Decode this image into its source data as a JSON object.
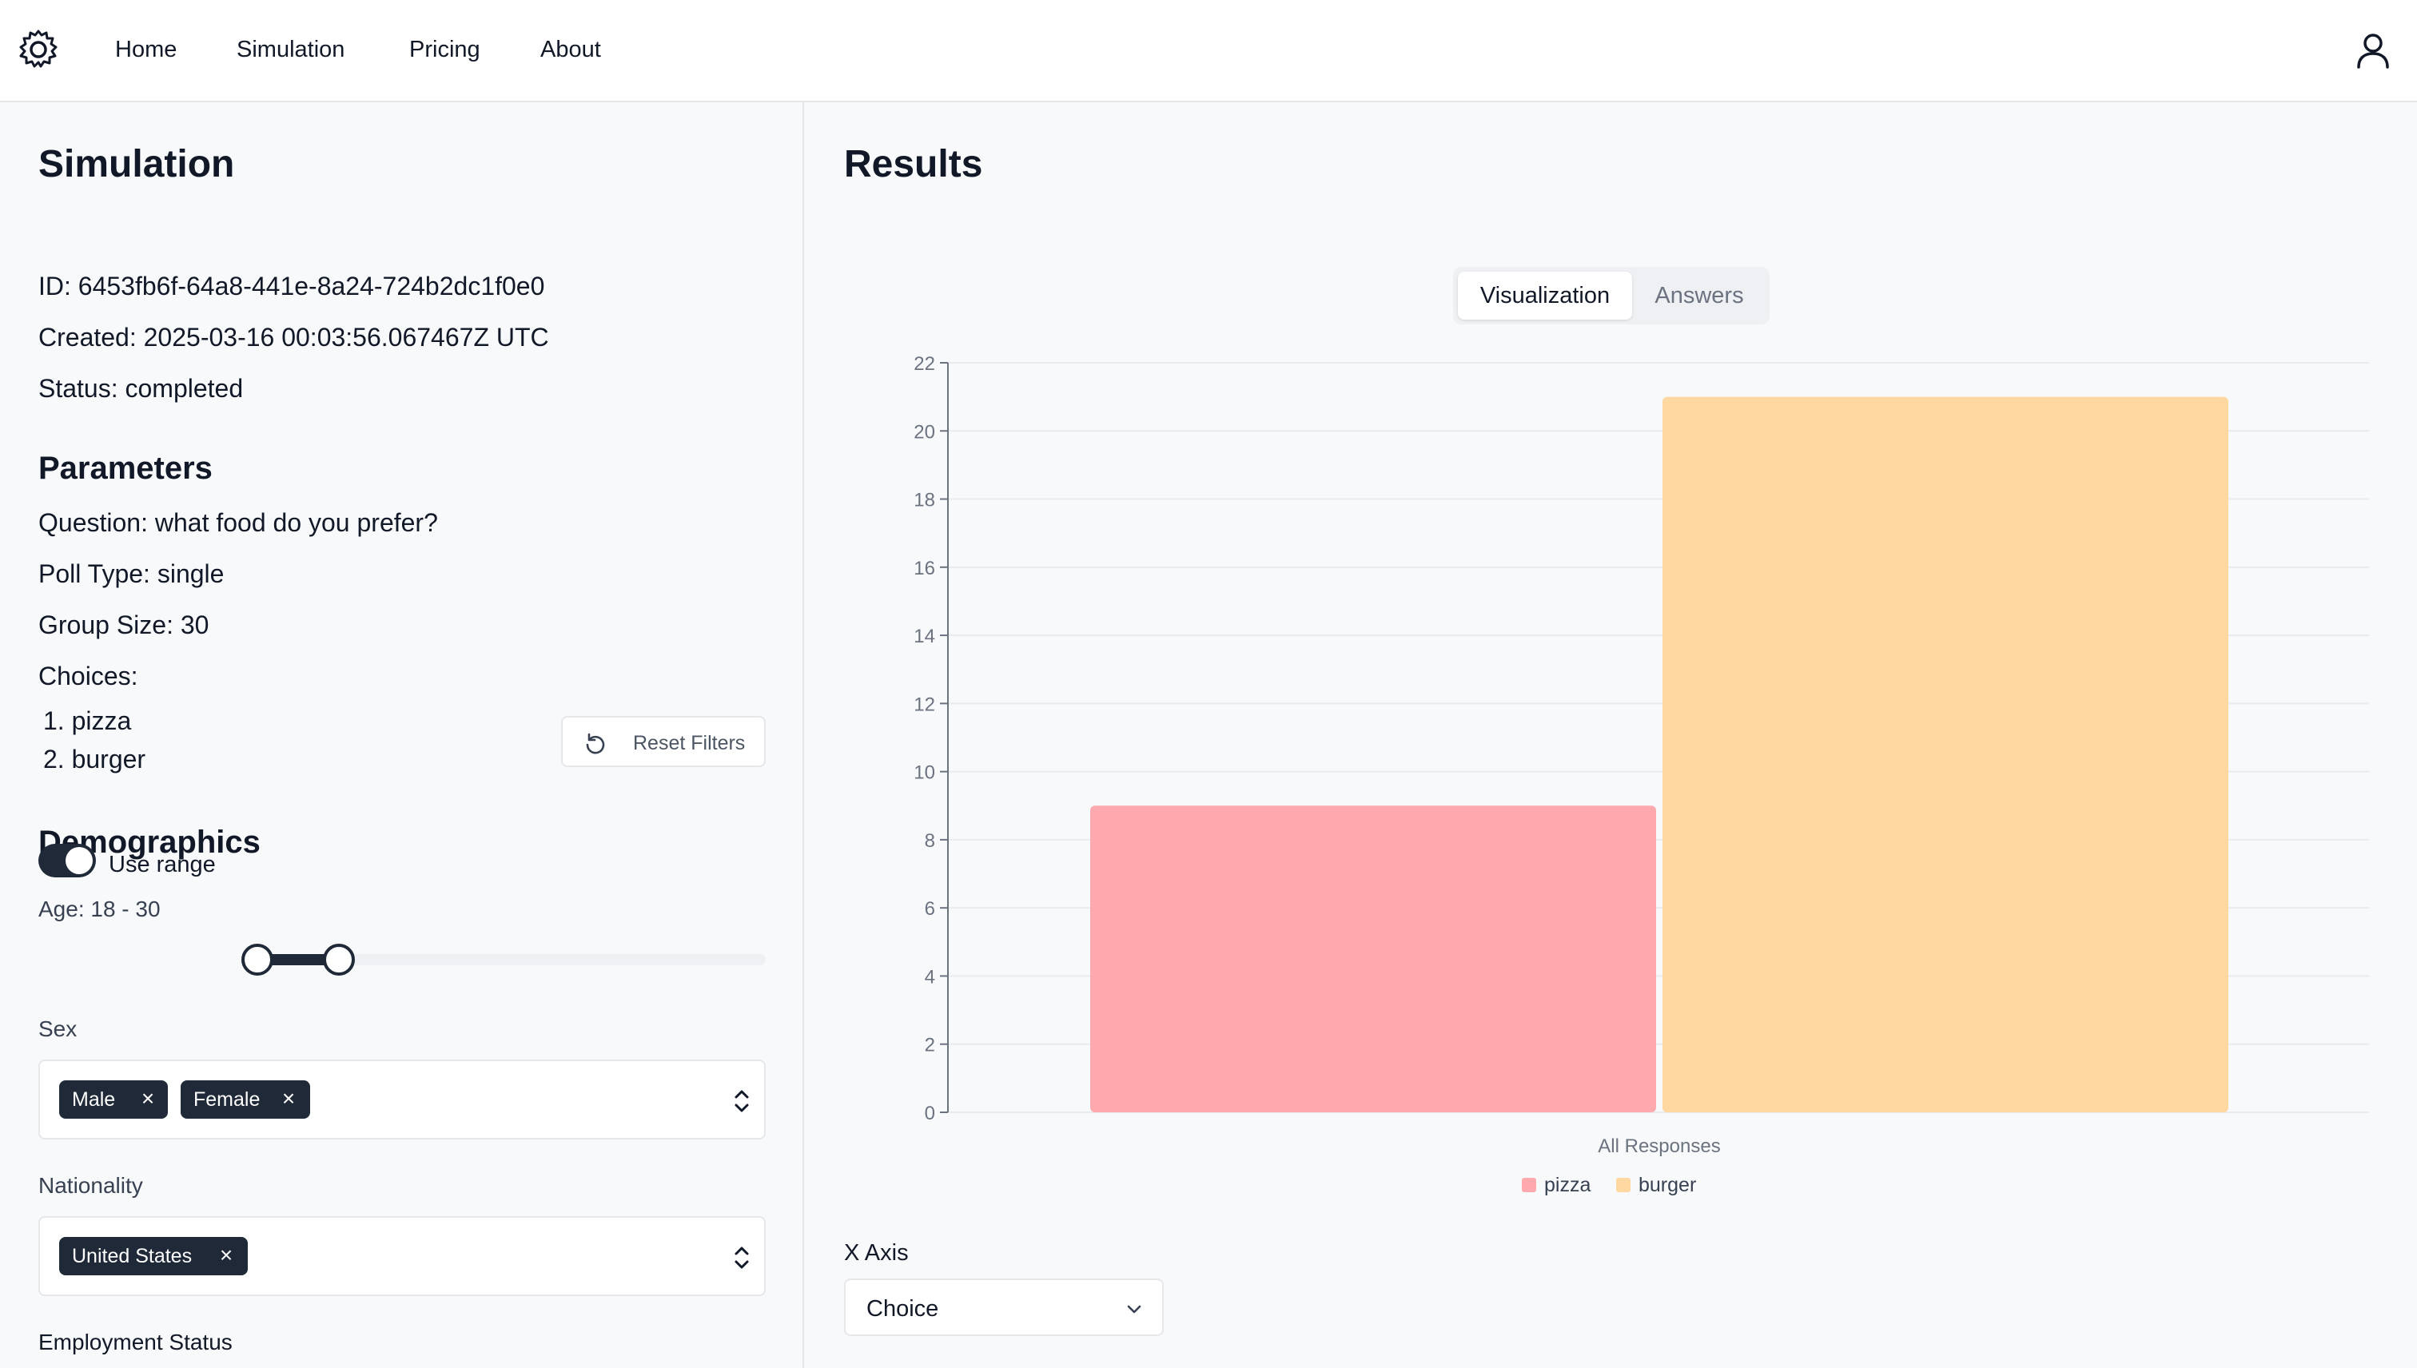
{
  "nav": {
    "links": [
      "Home",
      "Simulation",
      "Pricing",
      "About"
    ]
  },
  "simulation": {
    "title": "Simulation",
    "id_label": "ID:",
    "id_value": "6453fb6f-64a8-441e-8a24-724b2dc1f0e0",
    "created_label": "Created:",
    "created_value": "2025-03-16 00:03:56.067467Z UTC",
    "status_label": "Status:",
    "status_value": "completed"
  },
  "parameters": {
    "title": "Parameters",
    "question_label": "Question:",
    "question_value": "what food do you prefer?",
    "poll_type_label": "Poll Type:",
    "poll_type_value": "single",
    "group_size_label": "Group Size:",
    "group_size_value": "30",
    "choices_label": "Choices:",
    "choices": [
      "1. pizza",
      "2. burger"
    ]
  },
  "demographics": {
    "title": "Demographics",
    "reset_label": "Reset Filters",
    "age_label": "Age: 18 - 30",
    "use_range_label": "Use range",
    "use_range_on": true,
    "sex_label": "Sex",
    "sex_tags": [
      "Male",
      "Female"
    ],
    "nationality_label": "Nationality",
    "nationality_tags": [
      "United States"
    ],
    "employment_label": "Employment Status"
  },
  "results": {
    "title": "Results",
    "tabs": [
      "Visualization",
      "Answers"
    ],
    "active_tab": "Visualization",
    "x_axis_label": "X Axis",
    "x_axis_value": "Choice"
  },
  "colors": {
    "pizza": "#fea9ad",
    "burger": "#fed7a1"
  },
  "chart_data": {
    "type": "bar",
    "categories": [
      "All Responses"
    ],
    "series": [
      {
        "name": "pizza",
        "values": [
          9
        ]
      },
      {
        "name": "burger",
        "values": [
          21
        ]
      }
    ],
    "ylim": [
      0,
      22
    ],
    "yticks": [
      0,
      2,
      4,
      6,
      8,
      10,
      12,
      14,
      16,
      18,
      20,
      22
    ],
    "grid": true,
    "legend": "bottom-center",
    "xlabel": "All Responses"
  }
}
